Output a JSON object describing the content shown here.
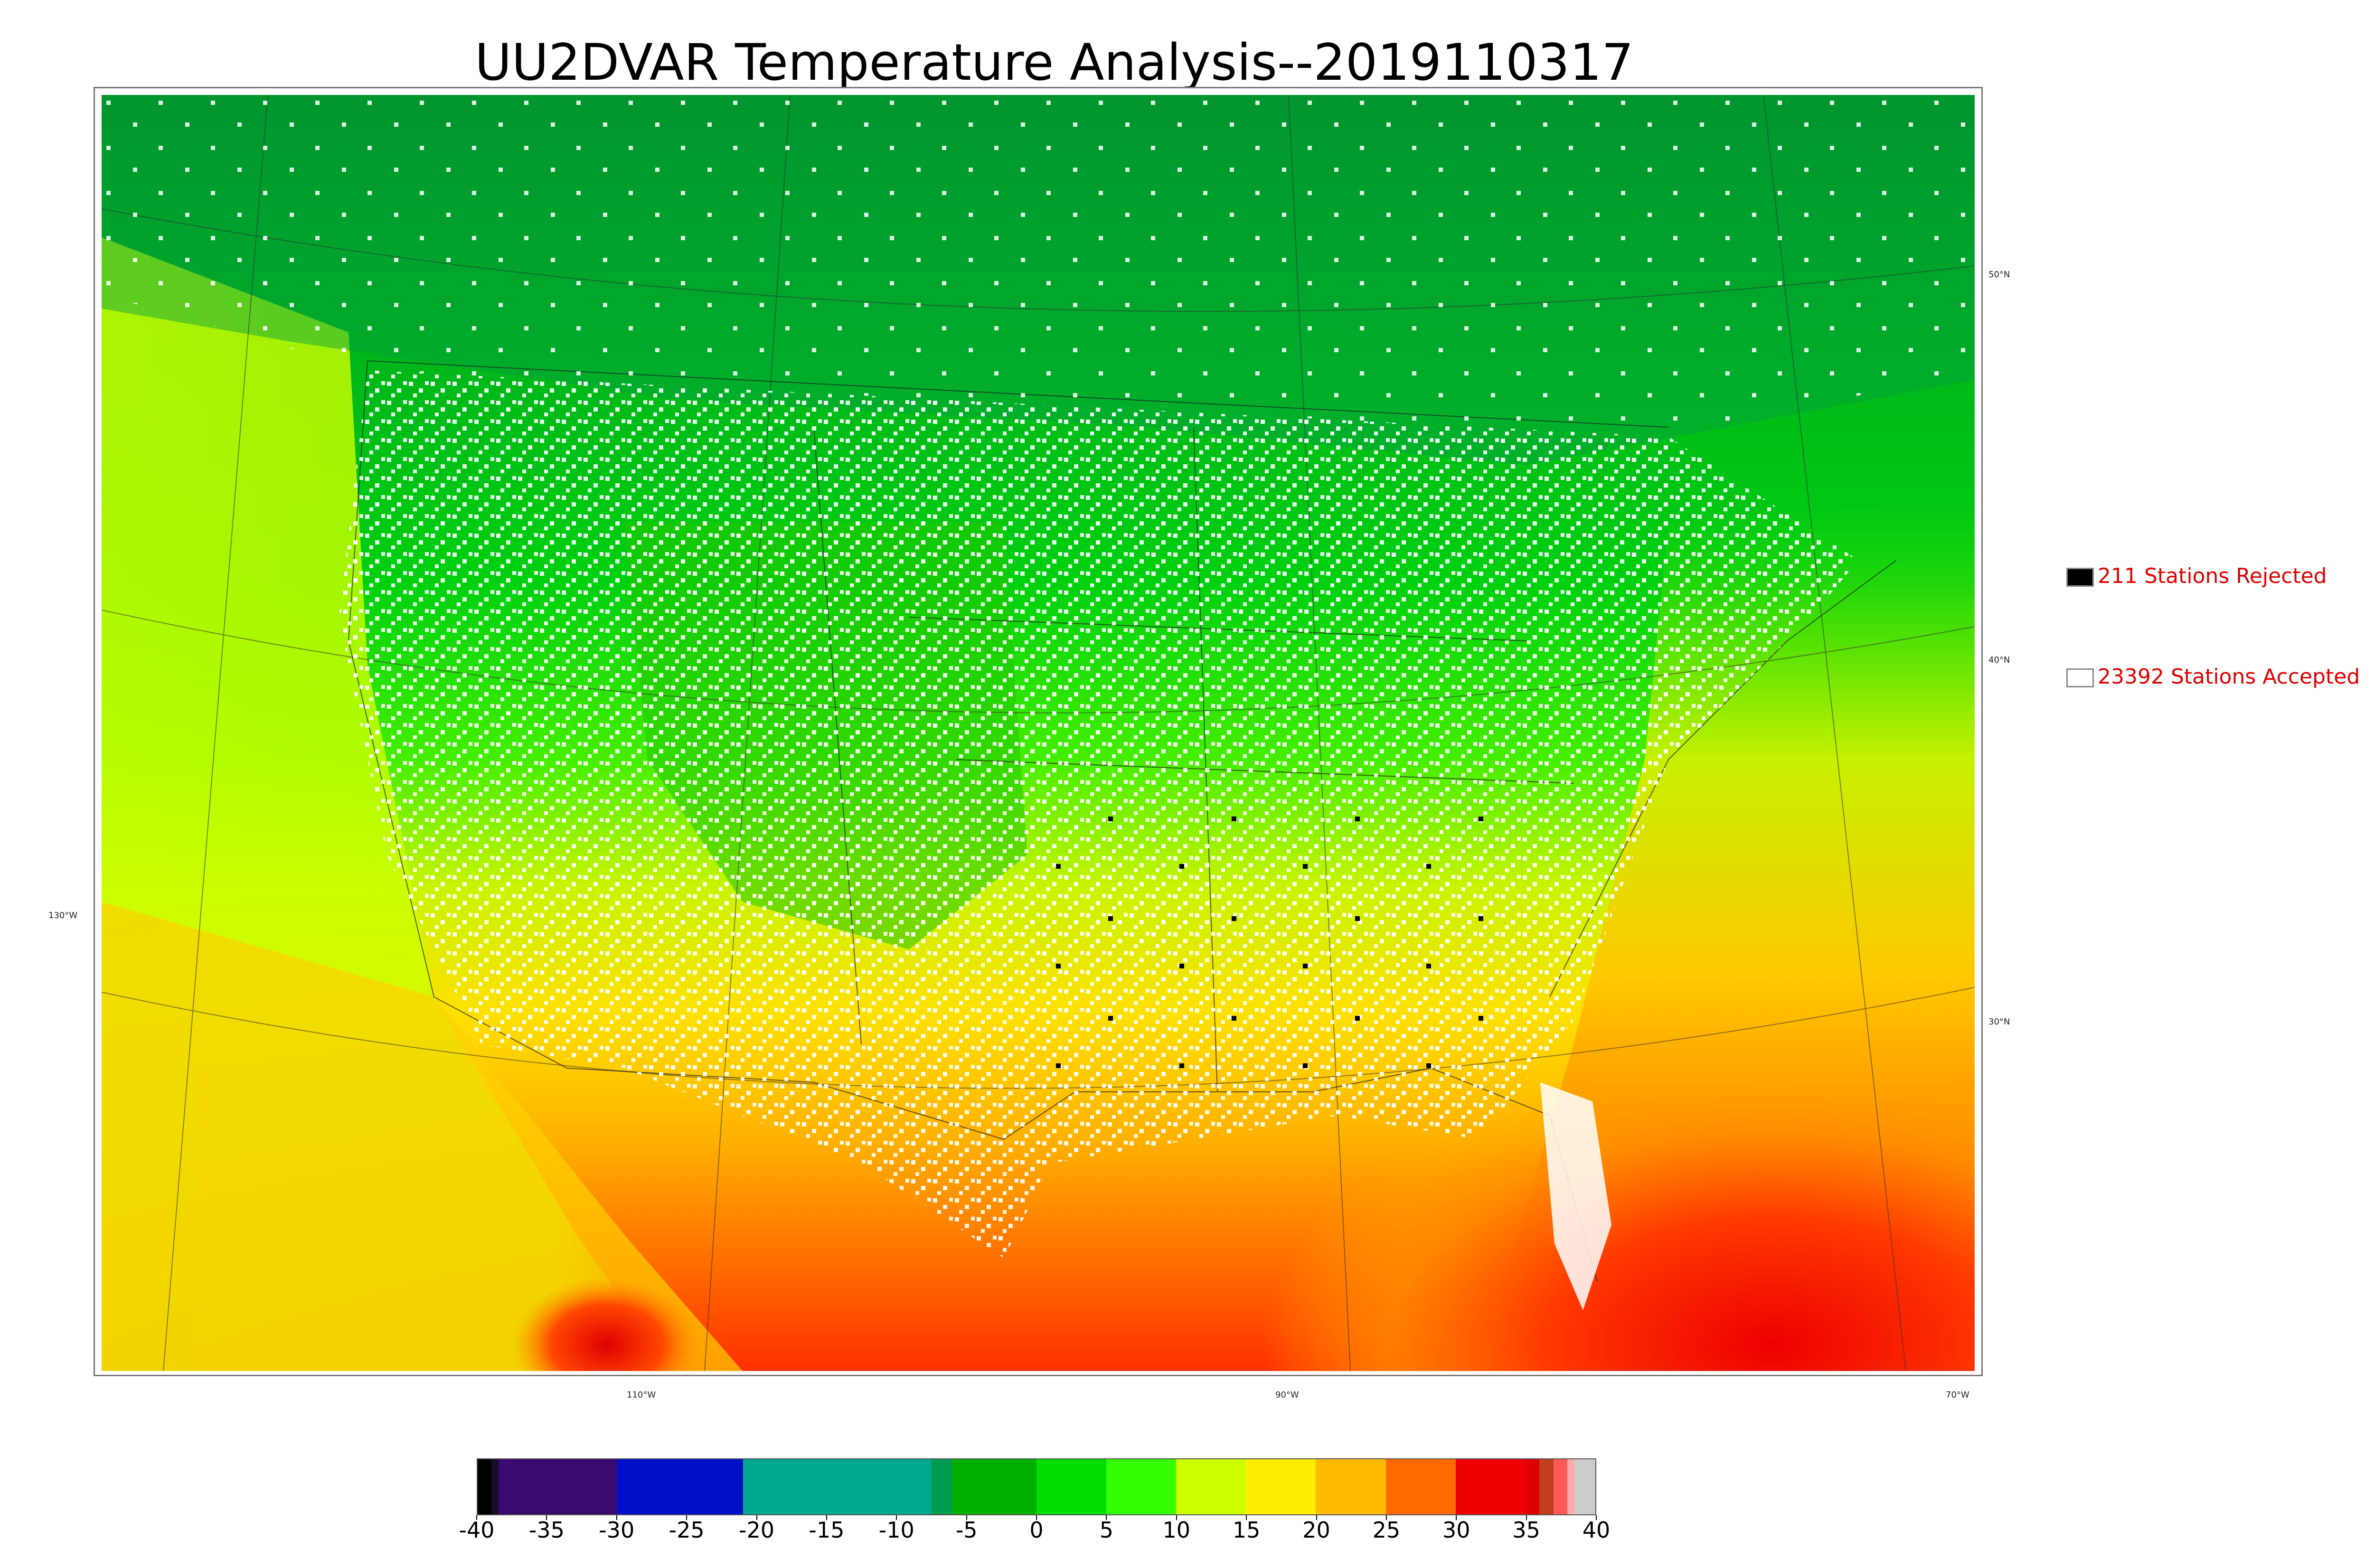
{
  "title": "UU2DVAR Temperature Analysis--2019110317",
  "map": {
    "lat_labels": [
      "50°N",
      "40°N",
      "30°N"
    ],
    "lon_labels": [
      "130°W",
      "110°W",
      "90°W",
      "70°W"
    ]
  },
  "legend": {
    "rejected": {
      "label": "211 Stations Rejected",
      "swatch_color": "#000000"
    },
    "accepted": {
      "label": "23392 Stations Accepted",
      "swatch_color": "#ffffff"
    }
  },
  "colorbar": {
    "ticks": [
      "-40",
      "-35",
      "-30",
      "-25",
      "-20",
      "-15",
      "-10",
      "-5",
      "0",
      "5",
      "10",
      "15",
      "20",
      "25",
      "30",
      "35",
      "40"
    ],
    "range": [
      -40,
      40
    ],
    "segments": [
      {
        "from": -40,
        "to": -39,
        "color": "#000000"
      },
      {
        "from": -39,
        "to": -38.5,
        "color": "#1a0a2a"
      },
      {
        "from": -38.5,
        "to": -30,
        "color": "#3a0a6e"
      },
      {
        "from": -30,
        "to": -21,
        "color": "#0010c8"
      },
      {
        "from": -21,
        "to": -7.5,
        "color": "#00a890"
      },
      {
        "from": -7.5,
        "to": -6,
        "color": "#009a50"
      },
      {
        "from": -6,
        "to": 0,
        "color": "#00b000"
      },
      {
        "from": 0,
        "to": 5,
        "color": "#00dd00"
      },
      {
        "from": 5,
        "to": 10,
        "color": "#33ff00"
      },
      {
        "from": 10,
        "to": 15,
        "color": "#ccff00"
      },
      {
        "from": 15,
        "to": 20,
        "color": "#ffee00"
      },
      {
        "from": 20,
        "to": 25,
        "color": "#ffbb00"
      },
      {
        "from": 25,
        "to": 30,
        "color": "#ff6a00"
      },
      {
        "from": 30,
        "to": 35,
        "color": "#ee0000"
      },
      {
        "from": 35,
        "to": 36,
        "color": "#dd0000"
      },
      {
        "from": 36,
        "to": 37,
        "color": "#c0401e"
      },
      {
        "from": 37,
        "to": 38,
        "color": "#ff5a5a"
      },
      {
        "from": 38,
        "to": 38.5,
        "color": "#ffaaaa"
      },
      {
        "from": 38.5,
        "to": 40,
        "color": "#cccccc"
      }
    ]
  }
}
